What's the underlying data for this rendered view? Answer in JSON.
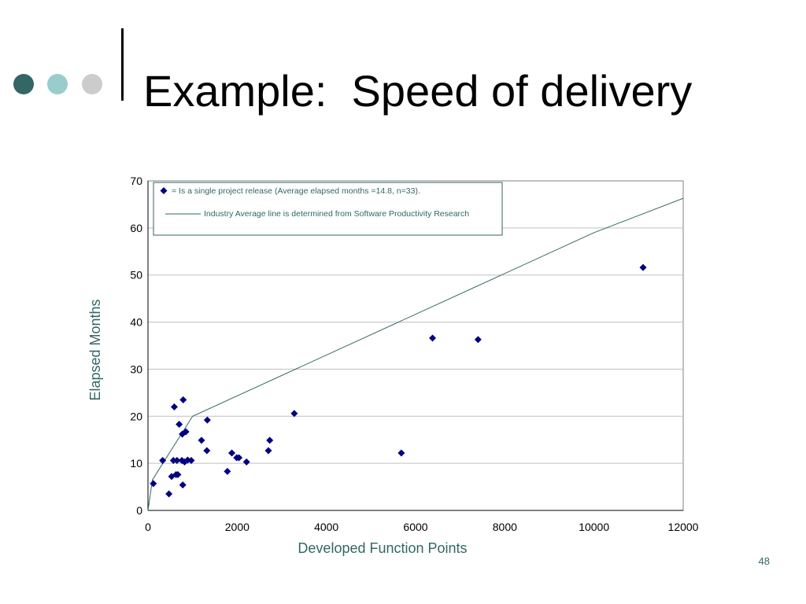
{
  "slide": {
    "title": "Example:  Speed of delivery",
    "page_number": "48",
    "bullet_colors": [
      "#336666",
      "#99cccc",
      "#cccccc"
    ]
  },
  "chart_data": {
    "type": "scatter",
    "xlabel": "Developed Function Points",
    "ylabel": "Elapsed Months",
    "xlim": [
      0,
      12000
    ],
    "ylim": [
      0,
      70
    ],
    "xticks": [
      "0",
      "2000",
      "4000",
      "6000",
      "8000",
      "10000",
      "12000"
    ],
    "yticks": [
      "0",
      "10",
      "20",
      "30",
      "40",
      "50",
      "60",
      "70"
    ],
    "grid": "horizontal",
    "legend_position": "top-left",
    "legend": [
      {
        "marker": "diamond",
        "label": "= Is a single project release (Average elapsed months =14.8, n=33)."
      },
      {
        "marker": "line",
        "label": "Industry Average line is determined from Software Productivity Research"
      }
    ],
    "colors": {
      "points": "#000080",
      "line": "#336666",
      "axis_label": "#336666"
    },
    "series": [
      {
        "marker": "diamond",
        "points": [
          [
            120,
            5.7
          ],
          [
            330,
            10.6
          ],
          [
            470,
            3.5
          ],
          [
            530,
            7.2
          ],
          [
            570,
            10.6
          ],
          [
            590,
            22
          ],
          [
            630,
            7.6
          ],
          [
            650,
            10.6
          ],
          [
            670,
            7.6
          ],
          [
            700,
            18.3
          ],
          [
            760,
            10.6
          ],
          [
            770,
            16.2
          ],
          [
            780,
            5.4
          ],
          [
            790,
            23.5
          ],
          [
            820,
            10.3
          ],
          [
            850,
            16.7
          ],
          [
            890,
            10.7
          ],
          [
            970,
            10.6
          ],
          [
            1200,
            14.9
          ],
          [
            1320,
            12.7
          ],
          [
            1330,
            19.2
          ],
          [
            1780,
            8.3
          ],
          [
            1880,
            12.2
          ],
          [
            1990,
            11.2
          ],
          [
            2040,
            11.2
          ],
          [
            2210,
            10.3
          ],
          [
            2700,
            12.7
          ],
          [
            2730,
            14.9
          ],
          [
            3280,
            20.6
          ],
          [
            5680,
            12.2
          ],
          [
            6380,
            36.6
          ],
          [
            7400,
            36.3
          ],
          [
            11100,
            51.6
          ]
        ]
      },
      {
        "type": "line",
        "points": [
          [
            0,
            0
          ],
          [
            100,
            6.5
          ],
          [
            1000,
            20
          ],
          [
            10000,
            59
          ],
          [
            12000,
            66.3
          ]
        ]
      }
    ]
  }
}
